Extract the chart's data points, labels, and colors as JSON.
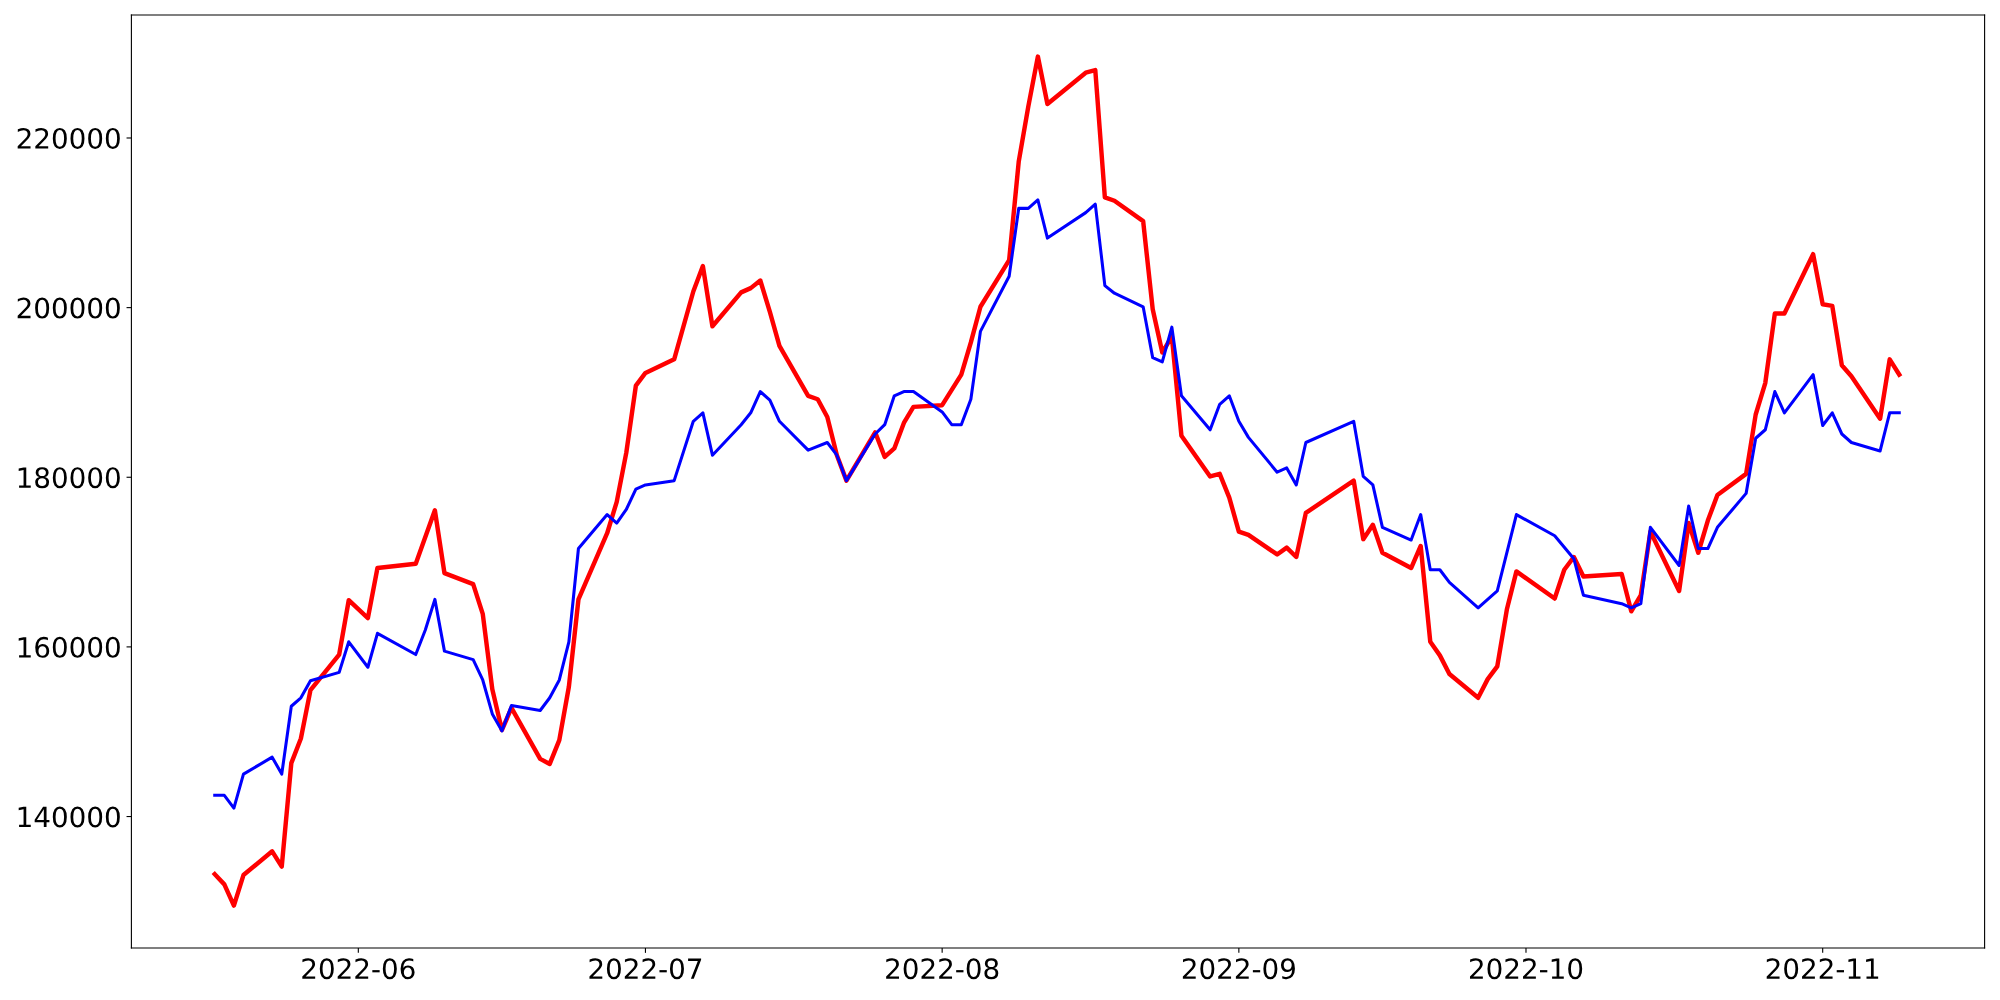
{
  "chart_data": {
    "type": "line",
    "xlim": [
      "2022-05-08T07:00",
      "2022-11-17T22:00"
    ],
    "ylim": [
      124500,
      234500
    ],
    "xticks": [
      {
        "value": "2022-06-01",
        "label": "2022-06"
      },
      {
        "value": "2022-07-01",
        "label": "2022-07"
      },
      {
        "value": "2022-08-01",
        "label": "2022-08"
      },
      {
        "value": "2022-09-01",
        "label": "2022-09"
      },
      {
        "value": "2022-10-01",
        "label": "2022-10"
      },
      {
        "value": "2022-11-01",
        "label": "2022-11"
      }
    ],
    "yticks": [
      140000,
      160000,
      180000,
      200000,
      220000
    ],
    "grid": false,
    "marker": "none",
    "line_style": "solid",
    "series": [
      {
        "color": "#ff0000",
        "x": [
          "2022-05-17",
          "2022-05-18",
          "2022-05-19",
          "2022-05-20",
          "2022-05-23",
          "2022-05-24",
          "2022-05-25",
          "2022-05-26",
          "2022-05-27",
          "2022-05-30",
          "2022-05-31",
          "2022-06-02",
          "2022-06-03",
          "2022-06-07",
          "2022-06-09",
          "2022-06-10",
          "2022-06-13",
          "2022-06-14",
          "2022-06-15",
          "2022-06-16",
          "2022-06-17",
          "2022-06-20",
          "2022-06-21",
          "2022-06-22",
          "2022-06-23",
          "2022-06-24",
          "2022-06-27",
          "2022-06-28",
          "2022-06-29",
          "2022-06-30",
          "2022-07-01",
          "2022-07-04",
          "2022-07-06",
          "2022-07-07",
          "2022-07-08",
          "2022-07-11",
          "2022-07-12",
          "2022-07-13",
          "2022-07-14",
          "2022-07-15",
          "2022-07-18",
          "2022-07-19",
          "2022-07-20",
          "2022-07-21",
          "2022-07-22",
          "2022-07-25",
          "2022-07-26",
          "2022-07-27",
          "2022-07-28",
          "2022-07-29",
          "2022-08-01",
          "2022-08-03",
          "2022-08-04",
          "2022-08-05",
          "2022-08-08",
          "2022-08-09",
          "2022-08-10",
          "2022-08-11",
          "2022-08-12",
          "2022-08-16",
          "2022-08-17",
          "2022-08-18",
          "2022-08-19",
          "2022-08-22",
          "2022-08-23",
          "2022-08-24",
          "2022-08-25",
          "2022-08-26",
          "2022-08-29",
          "2022-08-30",
          "2022-08-31",
          "2022-09-01",
          "2022-09-02",
          "2022-09-05",
          "2022-09-06",
          "2022-09-07",
          "2022-09-08",
          "2022-09-13",
          "2022-09-14",
          "2022-09-15",
          "2022-09-16",
          "2022-09-19",
          "2022-09-20",
          "2022-09-21",
          "2022-09-22",
          "2022-09-23",
          "2022-09-26",
          "2022-09-27",
          "2022-09-28",
          "2022-09-29",
          "2022-09-30",
          "2022-10-04",
          "2022-10-05",
          "2022-10-06",
          "2022-10-07",
          "2022-10-11",
          "2022-10-12",
          "2022-10-13",
          "2022-10-14",
          "2022-10-17",
          "2022-10-18",
          "2022-10-19",
          "2022-10-20",
          "2022-10-21",
          "2022-10-24",
          "2022-10-25",
          "2022-10-26",
          "2022-10-27",
          "2022-10-28",
          "2022-10-31",
          "2022-11-01",
          "2022-11-02",
          "2022-11-03",
          "2022-11-04",
          "2022-11-07",
          "2022-11-08",
          "2022-11-09"
        ],
        "values": [
          133200,
          132000,
          129500,
          133100,
          135900,
          134100,
          146300,
          149200,
          154900,
          159100,
          165500,
          163400,
          169300,
          169800,
          176100,
          168700,
          167400,
          163900,
          155000,
          150200,
          152800,
          146800,
          146200,
          149000,
          155300,
          165600,
          173400,
          177100,
          182900,
          190800,
          192300,
          193900,
          201900,
          204900,
          197800,
          201800,
          202300,
          203200,
          199500,
          195500,
          189600,
          189200,
          187100,
          182600,
          179600,
          185300,
          182400,
          183400,
          186400,
          188300,
          188500,
          192100,
          195900,
          200100,
          205600,
          217200,
          223700,
          229600,
          224000,
          227700,
          228000,
          213000,
          212600,
          210200,
          199800,
          194700,
          196600,
          184900,
          180100,
          180400,
          177600,
          173600,
          173200,
          170900,
          171700,
          170600,
          175800,
          179600,
          172700,
          174400,
          171100,
          169300,
          171900,
          160600,
          159000,
          156800,
          154000,
          156200,
          157700,
          164400,
          168900,
          165700,
          169100,
          170600,
          168300,
          168600,
          164200,
          166100,
          173600,
          166600,
          174600,
          171100,
          174900,
          177900,
          180400,
          187400,
          191100,
          199300,
          199300,
          206300,
          200400,
          200200,
          193200,
          191900,
          186900,
          193900,
          192100
        ]
      },
      {
        "color": "#0000ff",
        "x": [
          "2022-05-17",
          "2022-05-18",
          "2022-05-19",
          "2022-05-20",
          "2022-05-23",
          "2022-05-24",
          "2022-05-25",
          "2022-05-26",
          "2022-05-27",
          "2022-05-30",
          "2022-05-31",
          "2022-06-02",
          "2022-06-03",
          "2022-06-07",
          "2022-06-08",
          "2022-06-09",
          "2022-06-10",
          "2022-06-13",
          "2022-06-14",
          "2022-06-15",
          "2022-06-16",
          "2022-06-17",
          "2022-06-20",
          "2022-06-21",
          "2022-06-22",
          "2022-06-23",
          "2022-06-24",
          "2022-06-27",
          "2022-06-28",
          "2022-06-29",
          "2022-06-30",
          "2022-07-01",
          "2022-07-04",
          "2022-07-06",
          "2022-07-07",
          "2022-07-08",
          "2022-07-11",
          "2022-07-12",
          "2022-07-13",
          "2022-07-14",
          "2022-07-15",
          "2022-07-18",
          "2022-07-20",
          "2022-07-21",
          "2022-07-22",
          "2022-07-25",
          "2022-07-26",
          "2022-07-27",
          "2022-07-28",
          "2022-07-29",
          "2022-08-01",
          "2022-08-02",
          "2022-08-03",
          "2022-08-04",
          "2022-08-05",
          "2022-08-08",
          "2022-08-09",
          "2022-08-10",
          "2022-08-11",
          "2022-08-12",
          "2022-08-16",
          "2022-08-17",
          "2022-08-18",
          "2022-08-19",
          "2022-08-22",
          "2022-08-23",
          "2022-08-24",
          "2022-08-25",
          "2022-08-26",
          "2022-08-29",
          "2022-08-30",
          "2022-08-31",
          "2022-09-01",
          "2022-09-02",
          "2022-09-05",
          "2022-09-06",
          "2022-09-07",
          "2022-09-08",
          "2022-09-13",
          "2022-09-14",
          "2022-09-15",
          "2022-09-16",
          "2022-09-19",
          "2022-09-20",
          "2022-09-21",
          "2022-09-22",
          "2022-09-23",
          "2022-09-26",
          "2022-09-28",
          "2022-09-30",
          "2022-10-04",
          "2022-10-06",
          "2022-10-07",
          "2022-10-11",
          "2022-10-12",
          "2022-10-13",
          "2022-10-14",
          "2022-10-17",
          "2022-10-18",
          "2022-10-19",
          "2022-10-20",
          "2022-10-21",
          "2022-10-24",
          "2022-10-25",
          "2022-10-26",
          "2022-10-27",
          "2022-10-28",
          "2022-10-31",
          "2022-11-01",
          "2022-11-02",
          "2022-11-03",
          "2022-11-04",
          "2022-11-07",
          "2022-11-08",
          "2022-11-09"
        ],
        "values": [
          142500,
          142500,
          141000,
          145000,
          147000,
          145000,
          153000,
          154000,
          156000,
          157000,
          160600,
          157600,
          161600,
          159100,
          162000,
          165600,
          159500,
          158500,
          156100,
          152100,
          150100,
          153100,
          152500,
          154000,
          156100,
          160600,
          171600,
          175600,
          174600,
          176200,
          178600,
          179100,
          179600,
          186600,
          187600,
          182600,
          186200,
          187600,
          190100,
          189100,
          186600,
          183200,
          184100,
          182600,
          179600,
          185100,
          186200,
          189600,
          190100,
          190100,
          187700,
          186200,
          186200,
          189200,
          197200,
          203700,
          211700,
          211700,
          212700,
          208200,
          211200,
          212200,
          202600,
          201700,
          200100,
          194100,
          193600,
          197700,
          189600,
          185600,
          188600,
          189600,
          186600,
          184700,
          180600,
          181100,
          179100,
          184100,
          186600,
          180100,
          179100,
          174100,
          172600,
          175600,
          169100,
          169100,
          167600,
          164600,
          166600,
          175600,
          173100,
          170400,
          166100,
          165100,
          164600,
          165100,
          174100,
          169600,
          176600,
          171600,
          171600,
          174100,
          178100,
          184600,
          185600,
          190100,
          187600,
          192100,
          186100,
          187600,
          185100,
          184100,
          183100,
          187600,
          187600
        ]
      }
    ]
  }
}
